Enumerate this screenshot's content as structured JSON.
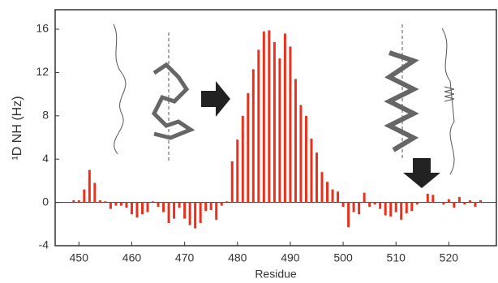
{
  "chart_data": {
    "type": "bar",
    "x_label": "Residue",
    "y_label": "¹D NH (Hz)",
    "color": "#e8321e",
    "x": [
      449,
      450,
      451,
      452,
      453,
      454,
      455,
      456,
      457,
      458,
      459,
      460,
      461,
      462,
      463,
      464,
      465,
      466,
      467,
      468,
      469,
      470,
      471,
      472,
      473,
      474,
      475,
      476,
      477,
      478,
      479,
      480,
      481,
      482,
      483,
      484,
      485,
      486,
      487,
      488,
      489,
      490,
      491,
      492,
      493,
      494,
      495,
      496,
      497,
      498,
      499,
      500,
      501,
      502,
      503,
      504,
      505,
      506,
      507,
      508,
      509,
      510,
      511,
      512,
      513,
      514,
      515,
      516,
      517,
      518,
      519,
      520,
      521,
      522,
      523,
      524,
      525,
      526
    ],
    "values": [
      0.2,
      0.2,
      1.2,
      3.0,
      1.8,
      0.2,
      0.1,
      -0.6,
      -0.3,
      -0.3,
      -0.5,
      -1.1,
      -1.4,
      -1.1,
      -0.9,
      0.1,
      -0.4,
      -0.9,
      -1.9,
      -1.5,
      -0.5,
      -1.5,
      -2.1,
      -2.4,
      -1.9,
      -0.8,
      -0.7,
      -1.6,
      -0.3,
      0.1,
      3.8,
      5.8,
      8.0,
      10.1,
      12.3,
      14.1,
      15.8,
      15.9,
      14.8,
      13.3,
      15.6,
      14.4,
      11.4,
      9.0,
      8.0,
      5.9,
      4.6,
      2.8,
      1.9,
      1.2,
      1.0,
      -0.4,
      -2.3,
      -0.9,
      -1.1,
      0.9,
      -0.4,
      -0.2,
      -0.6,
      -1.2,
      -1.3,
      -0.9,
      -1.6,
      -1.0,
      -0.8,
      -0.2,
      0.0,
      0.8,
      0.7,
      0.0,
      -0.2,
      0.3,
      -0.5,
      0.5,
      -0.2,
      0.2,
      -0.4,
      0.2
    ],
    "xlim": [
      445.5,
      529
    ],
    "xticks": [
      450,
      460,
      470,
      480,
      490,
      500,
      510,
      520
    ],
    "ylim": [
      -4,
      17.8
    ],
    "yticks": [
      -4,
      0,
      4,
      8,
      12,
      16
    ]
  }
}
